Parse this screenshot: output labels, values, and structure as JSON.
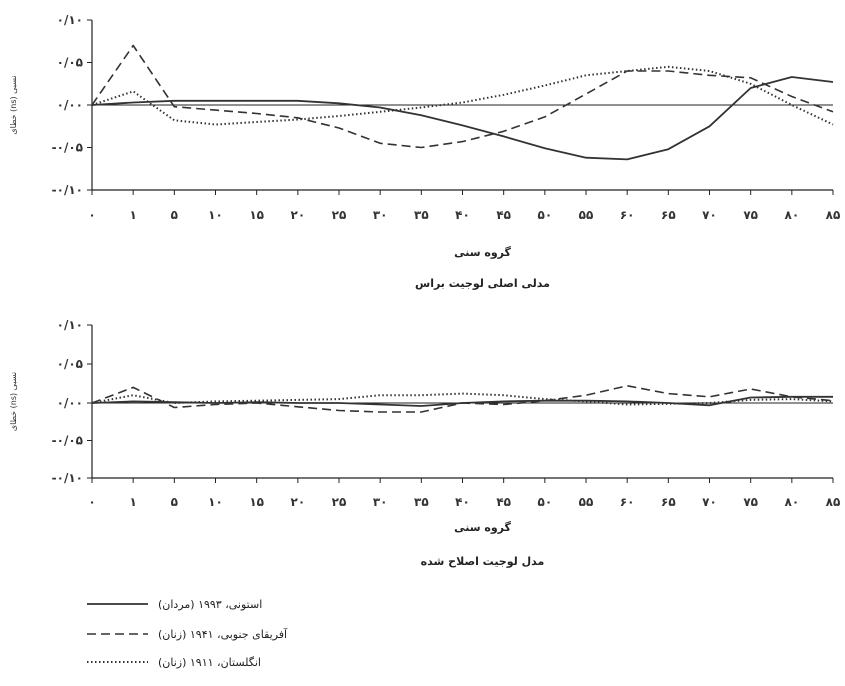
{
  "chart_data": [
    {
      "type": "line",
      "title": "مدلی اصلی لوجیت براس",
      "xlabel": "گروه سنی",
      "ylabel": "خطای (ns) نسبی",
      "x_ticks": [
        "۰",
        "۱",
        "۵",
        "۱۰",
        "۱۵",
        "۲۰",
        "۲۵",
        "۳۰",
        "۳۵",
        "۴۰",
        "۴۵",
        "۵۰",
        "۵۵",
        "۶۰",
        "۶۵",
        "۷۰",
        "۷۵",
        "۸۰",
        "۸۵"
      ],
      "y_ticks": [
        "۰/۱۰",
        "۰/۰۵",
        "۰/۰۰",
        "-۰/۰۵",
        "-۰/۱۰"
      ],
      "y_tick_values": [
        0.1,
        0.05,
        0,
        -0.05,
        -0.1
      ],
      "ylim": [
        -0.1,
        0.1
      ],
      "series": [
        {
          "name": "استونی، ۱۹۹۳ (مردان)",
          "style": "solid",
          "x": [
            0,
            1,
            5,
            10,
            15,
            20,
            25,
            30,
            35,
            40,
            45,
            50,
            55,
            60,
            65,
            70,
            75,
            80,
            85
          ],
          "y": [
            0.0,
            0.003,
            0.005,
            0.005,
            0.005,
            0.005,
            0.002,
            -0.003,
            -0.012,
            -0.024,
            -0.037,
            -0.051,
            -0.062,
            -0.064,
            -0.052,
            -0.025,
            0.02,
            0.033,
            0.027
          ]
        },
        {
          "name": "آفریقای جنوبی، ۱۹۴۱ (زنان)",
          "style": "dashed",
          "x": [
            0,
            1,
            5,
            10,
            15,
            20,
            25,
            30,
            35,
            40,
            45,
            50,
            55,
            60,
            65,
            70,
            75,
            80,
            85
          ],
          "y": [
            0.0,
            0.07,
            -0.002,
            -0.006,
            -0.01,
            -0.015,
            -0.027,
            -0.045,
            -0.05,
            -0.043,
            -0.031,
            -0.014,
            0.013,
            0.04,
            0.04,
            0.035,
            0.032,
            0.01,
            -0.008
          ]
        },
        {
          "name": "انگلستان، ۱۹۱۱ (زنان)",
          "style": "dotted",
          "x": [
            0,
            1,
            5,
            10,
            15,
            20,
            25,
            30,
            35,
            40,
            45,
            50,
            55,
            60,
            65,
            70,
            75,
            80,
            85
          ],
          "y": [
            0.0,
            0.016,
            -0.018,
            -0.023,
            -0.02,
            -0.017,
            -0.013,
            -0.008,
            -0.003,
            0.003,
            0.012,
            0.023,
            0.035,
            0.04,
            0.045,
            0.04,
            0.025,
            0.0,
            -0.023
          ]
        }
      ]
    },
    {
      "type": "line",
      "title": "مدل لوجیت اصلاح شده",
      "xlabel": "گروه سنی",
      "ylabel": "خطای (ns) نسبی",
      "x_ticks": [
        "۰",
        "۱",
        "۵",
        "۱۰",
        "۱۵",
        "۲۰",
        "۲۵",
        "۳۰",
        "۳۵",
        "۴۰",
        "۴۵",
        "۵۰",
        "۵۵",
        "۶۰",
        "۶۵",
        "۷۰",
        "۷۵",
        "۸۰",
        "۸۵"
      ],
      "y_ticks": [
        "۰/۱۰",
        "۰/۰۵",
        "۰/۰۰",
        "-۰/۰۵",
        "-۰/۱۰"
      ],
      "y_tick_values": [
        0.1,
        0.05,
        0,
        -0.05,
        -0.1
      ],
      "ylim": [
        -0.1,
        0.1
      ],
      "series": [
        {
          "name": "استونی، ۱۹۹۳ (مردان)",
          "style": "solid",
          "x": [
            0,
            1,
            5,
            10,
            15,
            20,
            25,
            30,
            35,
            40,
            45,
            50,
            55,
            60,
            65,
            70,
            75,
            80,
            85
          ],
          "y": [
            0.0,
            0.002,
            0.001,
            0.0,
            0.001,
            0.0,
            0.0,
            -0.002,
            -0.004,
            0.0,
            0.002,
            0.003,
            0.003,
            0.002,
            0.0,
            -0.003,
            0.007,
            0.008,
            0.008
          ]
        },
        {
          "name": "آفریقای جنوبی، ۱۹۴۱ (زنان)",
          "style": "dashed",
          "x": [
            0,
            1,
            5,
            10,
            15,
            20,
            25,
            30,
            35,
            40,
            45,
            50,
            55,
            60,
            65,
            70,
            75,
            80,
            85
          ],
          "y": [
            0.0,
            0.02,
            -0.006,
            -0.002,
            0.0,
            -0.005,
            -0.01,
            -0.012,
            -0.012,
            0.0,
            -0.002,
            0.003,
            0.01,
            0.022,
            0.012,
            0.008,
            0.018,
            0.008,
            0.003
          ]
        },
        {
          "name": "انگلستان، ۱۹۱۱ (زنان)",
          "style": "dotted",
          "x": [
            0,
            1,
            5,
            10,
            15,
            20,
            25,
            30,
            35,
            40,
            45,
            50,
            55,
            60,
            65,
            70,
            75,
            80,
            85
          ],
          "y": [
            0.0,
            0.01,
            0.0,
            0.002,
            0.003,
            0.004,
            0.005,
            0.01,
            0.01,
            0.012,
            0.01,
            0.005,
            0.002,
            -0.002,
            -0.001,
            0.0,
            0.004,
            0.005,
            0.002
          ]
        }
      ]
    }
  ]
}
